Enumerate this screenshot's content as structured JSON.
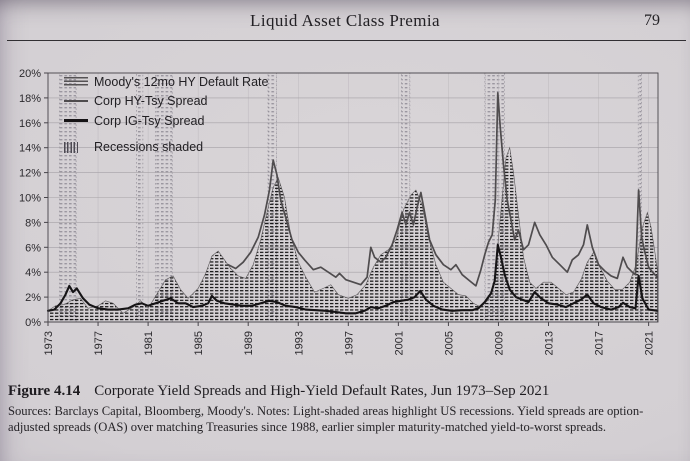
{
  "header": {
    "title": "Liquid Asset Class Premia",
    "page_number": "79"
  },
  "caption": {
    "label": "Figure 4.14",
    "title": "Corporate Yield Spreads and High-Yield Default Rates, Jun 1973–Sep 2021",
    "sources": "Sources: Barclays Capital, Bloomberg, Moody's. Notes: Light-shaded areas highlight US recessions. Yield spreads are option-adjusted spreads (OAS) over matching Treasuries since 1988, earlier simpler maturity-matched yield-to-worst spreads."
  },
  "chart_data": {
    "type": "line",
    "title": "",
    "xlabel": "",
    "ylabel": "",
    "xlim": [
      1973,
      2021.75
    ],
    "ylim": [
      0,
      20
    ],
    "x_ticks": [
      1973,
      1977,
      1981,
      1985,
      1989,
      1993,
      1997,
      2001,
      2005,
      2009,
      2013,
      2017,
      2021
    ],
    "y_ticks": [
      "0%",
      "2%",
      "4%",
      "6%",
      "8%",
      "10%",
      "12%",
      "14%",
      "16%",
      "18%",
      "20%"
    ],
    "grid": true,
    "legend_position": "upper-left",
    "legend": [
      "Moody's 12mo HY Default Rate",
      "Corp HY-Tsy Spread",
      "Corp IG-Tsy Spread",
      "Recessions shaded"
    ],
    "recessions": [
      [
        1973.92,
        1975.25
      ],
      [
        1980.08,
        1980.58
      ],
      [
        1981.58,
        1982.92
      ],
      [
        1990.58,
        1991.25
      ],
      [
        2001.25,
        2001.92
      ],
      [
        2007.92,
        2009.5
      ],
      [
        2020.17,
        2020.42
      ]
    ],
    "colors": {
      "paper": "#d3cfd3",
      "ink": "#211f23",
      "grid": "#a5a1a6",
      "vgrid": "#bcb8bd",
      "axis": "#47444a",
      "hy_line": "#4f4c4e",
      "ig_line": "#161416",
      "default_hatch": "#55525 4",
      "recession_fill": "#9b97a0",
      "recession_edge": "#8a8690"
    },
    "series": [
      {
        "name": "Moody's 12mo HY Default Rate",
        "style": "hatched-area",
        "color": "#5a5759",
        "width": 0.6,
        "points": [
          [
            1973.0,
            0.9
          ],
          [
            1973.6,
            1.3
          ],
          [
            1974.3,
            1.4
          ],
          [
            1975.0,
            1.8
          ],
          [
            1975.6,
            1.9
          ],
          [
            1976.2,
            1.1
          ],
          [
            1977.0,
            1.3
          ],
          [
            1977.6,
            1.7
          ],
          [
            1978.2,
            1.5
          ],
          [
            1979.0,
            0.7
          ],
          [
            1979.8,
            1.2
          ],
          [
            1980.4,
            1.7
          ],
          [
            1981.0,
            1.1
          ],
          [
            1981.8,
            2.4
          ],
          [
            1982.4,
            3.4
          ],
          [
            1983.0,
            3.7
          ],
          [
            1983.6,
            2.6
          ],
          [
            1984.2,
            1.9
          ],
          [
            1985.0,
            2.7
          ],
          [
            1985.6,
            3.9
          ],
          [
            1986.1,
            5.3
          ],
          [
            1986.6,
            5.7
          ],
          [
            1987.1,
            5.0
          ],
          [
            1987.6,
            4.3
          ],
          [
            1988.2,
            3.7
          ],
          [
            1988.8,
            3.5
          ],
          [
            1989.4,
            4.6
          ],
          [
            1990.0,
            6.6
          ],
          [
            1990.5,
            8.8
          ],
          [
            1991.0,
            10.8
          ],
          [
            1991.4,
            11.6
          ],
          [
            1991.9,
            10.0
          ],
          [
            1992.4,
            7.0
          ],
          [
            1993.0,
            4.8
          ],
          [
            1993.6,
            3.6
          ],
          [
            1994.3,
            2.4
          ],
          [
            1995.0,
            2.7
          ],
          [
            1995.6,
            3.0
          ],
          [
            1996.2,
            2.2
          ],
          [
            1997.0,
            1.9
          ],
          [
            1997.7,
            2.2
          ],
          [
            1998.4,
            3.0
          ],
          [
            1999.0,
            4.4
          ],
          [
            1999.6,
            5.4
          ],
          [
            2000.2,
            5.8
          ],
          [
            2000.8,
            6.6
          ],
          [
            2001.4,
            9.0
          ],
          [
            2002.0,
            10.2
          ],
          [
            2002.4,
            10.6
          ],
          [
            2002.9,
            9.4
          ],
          [
            2003.4,
            6.8
          ],
          [
            2004.0,
            4.6
          ],
          [
            2004.6,
            3.2
          ],
          [
            2005.2,
            2.7
          ],
          [
            2005.8,
            2.2
          ],
          [
            2006.4,
            2.1
          ],
          [
            2007.0,
            1.5
          ],
          [
            2007.6,
            1.2
          ],
          [
            2008.2,
            1.8
          ],
          [
            2008.7,
            3.4
          ],
          [
            2009.2,
            9.0
          ],
          [
            2009.6,
            13.2
          ],
          [
            2009.9,
            14.0
          ],
          [
            2010.2,
            12.0
          ],
          [
            2010.6,
            8.6
          ],
          [
            2011.0,
            5.2
          ],
          [
            2011.5,
            3.2
          ],
          [
            2012.0,
            2.7
          ],
          [
            2012.6,
            3.2
          ],
          [
            2013.2,
            3.2
          ],
          [
            2013.8,
            2.7
          ],
          [
            2014.4,
            2.2
          ],
          [
            2015.0,
            2.4
          ],
          [
            2015.6,
            3.4
          ],
          [
            2016.1,
            4.8
          ],
          [
            2016.6,
            5.6
          ],
          [
            2017.1,
            4.4
          ],
          [
            2017.7,
            3.3
          ],
          [
            2018.3,
            2.6
          ],
          [
            2018.9,
            2.6
          ],
          [
            2019.5,
            3.2
          ],
          [
            2020.0,
            4.6
          ],
          [
            2020.5,
            7.6
          ],
          [
            2020.9,
            8.8
          ],
          [
            2021.2,
            7.6
          ],
          [
            2021.5,
            5.6
          ],
          [
            2021.7,
            4.2
          ]
        ]
      },
      {
        "name": "Corp HY-Tsy Spread",
        "style": "line",
        "color": "#4f4c4e",
        "width": 1.7,
        "points": [
          [
            1987.4,
            4.6
          ],
          [
            1988.0,
            4.3
          ],
          [
            1988.6,
            4.8
          ],
          [
            1989.2,
            5.6
          ],
          [
            1989.8,
            6.8
          ],
          [
            1990.3,
            8.6
          ],
          [
            1990.7,
            10.6
          ],
          [
            1991.0,
            13.0
          ],
          [
            1991.3,
            11.8
          ],
          [
            1991.6,
            9.8
          ],
          [
            1992.0,
            8.4
          ],
          [
            1992.5,
            6.6
          ],
          [
            1993.0,
            5.6
          ],
          [
            1993.5,
            5.0
          ],
          [
            1994.2,
            4.2
          ],
          [
            1994.8,
            4.4
          ],
          [
            1995.4,
            4.0
          ],
          [
            1996.0,
            3.6
          ],
          [
            1996.3,
            3.9
          ],
          [
            1996.8,
            3.4
          ],
          [
            1997.4,
            3.2
          ],
          [
            1998.0,
            3.0
          ],
          [
            1998.5,
            3.6
          ],
          [
            1998.8,
            6.0
          ],
          [
            1999.1,
            5.2
          ],
          [
            1999.6,
            4.8
          ],
          [
            2000.0,
            5.2
          ],
          [
            2000.5,
            6.2
          ],
          [
            2000.9,
            7.4
          ],
          [
            2001.3,
            8.8
          ],
          [
            2001.6,
            7.8
          ],
          [
            2001.9,
            8.8
          ],
          [
            2002.2,
            7.8
          ],
          [
            2002.5,
            9.2
          ],
          [
            2002.8,
            10.4
          ],
          [
            2003.1,
            8.8
          ],
          [
            2003.5,
            6.6
          ],
          [
            2004.0,
            5.4
          ],
          [
            2004.6,
            4.6
          ],
          [
            2005.2,
            4.2
          ],
          [
            2005.6,
            4.6
          ],
          [
            2006.1,
            3.8
          ],
          [
            2006.7,
            3.3
          ],
          [
            2007.2,
            2.9
          ],
          [
            2007.6,
            4.2
          ],
          [
            2007.9,
            5.4
          ],
          [
            2008.2,
            6.4
          ],
          [
            2008.5,
            7.0
          ],
          [
            2008.75,
            9.8
          ],
          [
            2008.95,
            18.4
          ],
          [
            2009.15,
            15.6
          ],
          [
            2009.4,
            12.6
          ],
          [
            2009.7,
            9.8
          ],
          [
            2010.0,
            8.2
          ],
          [
            2010.3,
            6.6
          ],
          [
            2010.6,
            7.4
          ],
          [
            2011.0,
            5.8
          ],
          [
            2011.4,
            6.2
          ],
          [
            2011.9,
            8.0
          ],
          [
            2012.3,
            7.0
          ],
          [
            2012.8,
            6.2
          ],
          [
            2013.3,
            5.2
          ],
          [
            2013.9,
            4.6
          ],
          [
            2014.5,
            4.0
          ],
          [
            2014.9,
            5.0
          ],
          [
            2015.4,
            5.4
          ],
          [
            2015.8,
            6.2
          ],
          [
            2016.1,
            7.8
          ],
          [
            2016.5,
            6.0
          ],
          [
            2017.0,
            4.6
          ],
          [
            2017.5,
            4.1
          ],
          [
            2018.0,
            3.7
          ],
          [
            2018.5,
            3.5
          ],
          [
            2018.95,
            5.2
          ],
          [
            2019.3,
            4.4
          ],
          [
            2019.7,
            4.0
          ],
          [
            2019.95,
            3.8
          ],
          [
            2020.2,
            10.6
          ],
          [
            2020.45,
            6.8
          ],
          [
            2020.7,
            5.6
          ],
          [
            2021.0,
            4.4
          ],
          [
            2021.4,
            3.9
          ],
          [
            2021.7,
            3.6
          ]
        ]
      },
      {
        "name": "Corp IG-Tsy Spread",
        "style": "line",
        "color": "#161416",
        "width": 2.1,
        "points": [
          [
            1973.0,
            0.9
          ],
          [
            1973.5,
            1.0
          ],
          [
            1974.0,
            1.5
          ],
          [
            1974.4,
            2.2
          ],
          [
            1974.7,
            2.9
          ],
          [
            1975.0,
            2.4
          ],
          [
            1975.3,
            2.7
          ],
          [
            1975.8,
            1.9
          ],
          [
            1976.3,
            1.4
          ],
          [
            1977.0,
            1.1
          ],
          [
            1977.8,
            1.0
          ],
          [
            1978.6,
            1.0
          ],
          [
            1979.4,
            1.1
          ],
          [
            1980.0,
            1.4
          ],
          [
            1980.5,
            1.5
          ],
          [
            1981.0,
            1.3
          ],
          [
            1981.6,
            1.5
          ],
          [
            1982.2,
            1.7
          ],
          [
            1982.8,
            1.9
          ],
          [
            1983.4,
            1.5
          ],
          [
            1984.0,
            1.5
          ],
          [
            1984.6,
            1.2
          ],
          [
            1985.3,
            1.3
          ],
          [
            1985.8,
            1.5
          ],
          [
            1986.1,
            2.1
          ],
          [
            1986.5,
            1.7
          ],
          [
            1987.1,
            1.5
          ],
          [
            1987.8,
            1.4
          ],
          [
            1988.5,
            1.3
          ],
          [
            1989.3,
            1.3
          ],
          [
            1990.0,
            1.5
          ],
          [
            1990.7,
            1.7
          ],
          [
            1991.3,
            1.6
          ],
          [
            1992.0,
            1.3
          ],
          [
            1992.8,
            1.2
          ],
          [
            1993.6,
            1.0
          ],
          [
            1994.4,
            0.95
          ],
          [
            1995.2,
            0.9
          ],
          [
            1996.0,
            0.8
          ],
          [
            1996.8,
            0.7
          ],
          [
            1997.6,
            0.7
          ],
          [
            1998.3,
            0.9
          ],
          [
            1998.8,
            1.2
          ],
          [
            1999.4,
            1.1
          ],
          [
            2000.0,
            1.3
          ],
          [
            2000.6,
            1.6
          ],
          [
            2001.2,
            1.7
          ],
          [
            2001.8,
            1.8
          ],
          [
            2002.3,
            2.0
          ],
          [
            2002.75,
            2.5
          ],
          [
            2003.2,
            1.8
          ],
          [
            2003.8,
            1.3
          ],
          [
            2004.5,
            1.0
          ],
          [
            2005.3,
            0.9
          ],
          [
            2006.1,
            0.95
          ],
          [
            2006.9,
            0.95
          ],
          [
            2007.4,
            1.1
          ],
          [
            2007.9,
            1.6
          ],
          [
            2008.4,
            2.3
          ],
          [
            2008.7,
            3.3
          ],
          [
            2008.95,
            6.2
          ],
          [
            2009.2,
            5.2
          ],
          [
            2009.5,
            3.8
          ],
          [
            2009.9,
            2.6
          ],
          [
            2010.4,
            2.0
          ],
          [
            2010.9,
            1.8
          ],
          [
            2011.4,
            1.6
          ],
          [
            2011.9,
            2.4
          ],
          [
            2012.4,
            1.9
          ],
          [
            2013.0,
            1.5
          ],
          [
            2013.7,
            1.4
          ],
          [
            2014.4,
            1.2
          ],
          [
            2015.0,
            1.5
          ],
          [
            2015.6,
            1.8
          ],
          [
            2016.1,
            2.2
          ],
          [
            2016.6,
            1.5
          ],
          [
            2017.2,
            1.2
          ],
          [
            2018.0,
            1.0
          ],
          [
            2018.6,
            1.2
          ],
          [
            2018.95,
            1.55
          ],
          [
            2019.5,
            1.2
          ],
          [
            2019.95,
            1.1
          ],
          [
            2020.2,
            3.7
          ],
          [
            2020.5,
            1.9
          ],
          [
            2021.0,
            1.0
          ],
          [
            2021.4,
            0.95
          ],
          [
            2021.7,
            0.9
          ]
        ]
      }
    ]
  }
}
